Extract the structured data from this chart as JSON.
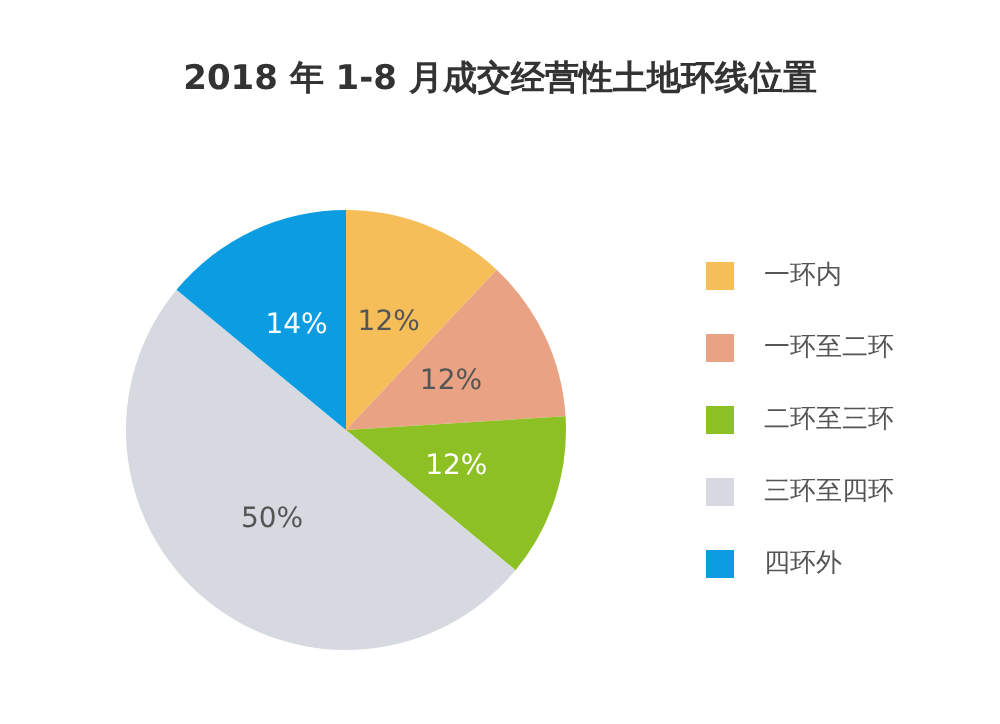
{
  "chart_data": {
    "type": "pie",
    "title": "2018 年 1-8 月成交经营性土地环线位置",
    "categories": [
      "一环内",
      "一环至二环",
      "二环至三环",
      "三环至四环",
      "四环外"
    ],
    "values": [
      12,
      12,
      12,
      50,
      14
    ],
    "colors": [
      "#f5be58",
      "#e9a283",
      "#8dc024",
      "#d6dae0",
      "#0b9ce2"
    ],
    "value_labels": [
      "12%",
      "12%",
      "12%",
      "50%",
      "14%"
    ],
    "legend": "right"
  }
}
